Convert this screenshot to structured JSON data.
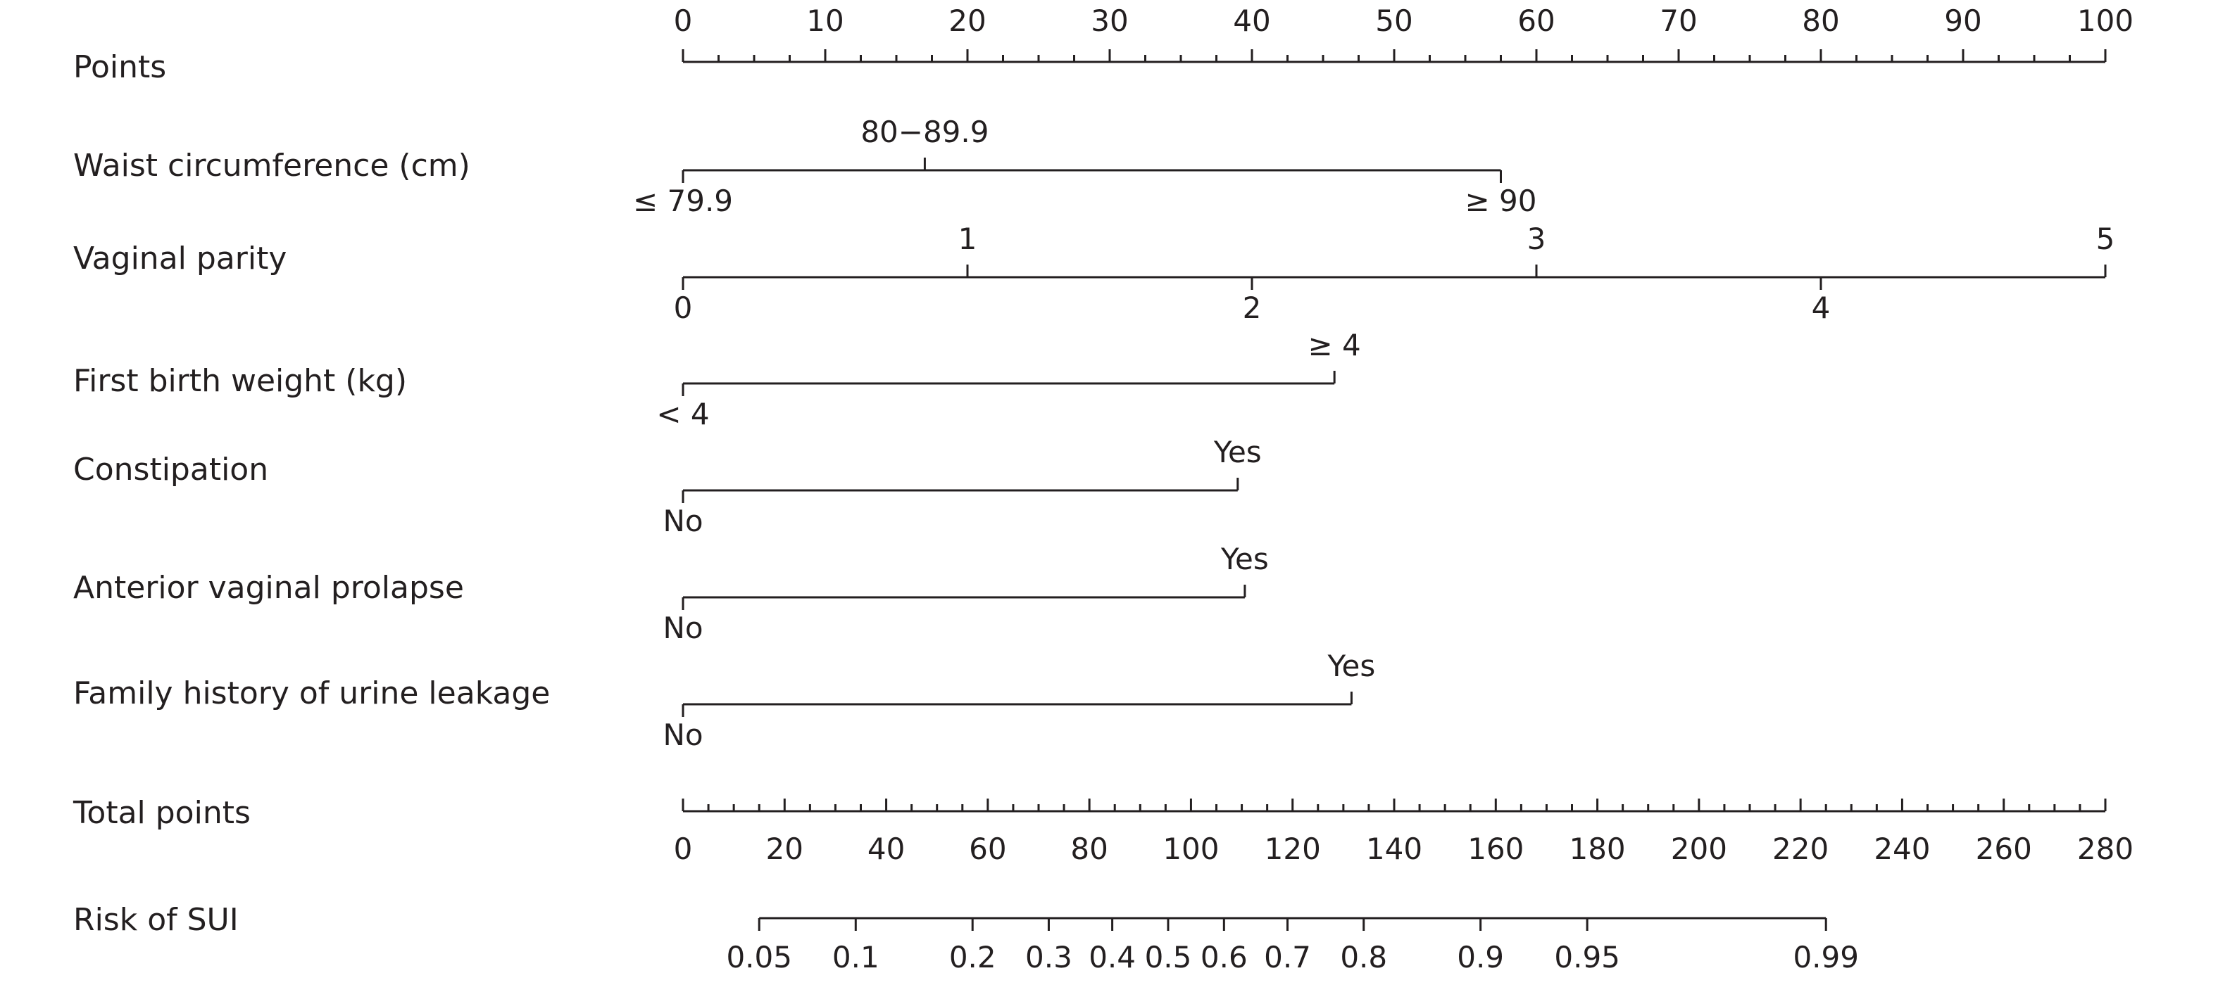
{
  "chart_data": {
    "type": "nomogram",
    "points_scale": {
      "min": 0,
      "max": 100
    },
    "rows": [
      {
        "label": "Points",
        "kind": "points",
        "major_ticks": [
          0,
          10,
          20,
          30,
          40,
          50,
          60,
          70,
          80,
          90,
          100
        ],
        "minor_step": 2.5,
        "tick_labels": [
          "0",
          "10",
          "20",
          "30",
          "40",
          "50",
          "60",
          "70",
          "80",
          "90",
          "100"
        ]
      },
      {
        "label": "Waist circumference (cm)",
        "kind": "variable",
        "levels": [
          {
            "label": "≤ 79.9",
            "points": 0,
            "label_side": "below"
          },
          {
            "label": "80−89.9",
            "points": 17,
            "label_side": "above"
          },
          {
            "label": "≥ 90",
            "points": 57.5,
            "label_side": "below"
          }
        ]
      },
      {
        "label": "Vaginal parity",
        "kind": "variable",
        "levels": [
          {
            "label": "0",
            "points": 0,
            "label_side": "below"
          },
          {
            "label": "1",
            "points": 20,
            "label_side": "above"
          },
          {
            "label": "2",
            "points": 40,
            "label_side": "below"
          },
          {
            "label": "3",
            "points": 60,
            "label_side": "above"
          },
          {
            "label": "4",
            "points": 80,
            "label_side": "below"
          },
          {
            "label": "5",
            "points": 100,
            "label_side": "above"
          }
        ]
      },
      {
        "label": "First birth weight (kg)",
        "kind": "variable",
        "levels": [
          {
            "label": "< 4",
            "points": 0,
            "label_side": "below"
          },
          {
            "label": "≥ 4",
            "points": 45.8,
            "label_side": "above"
          }
        ]
      },
      {
        "label": "Constipation",
        "kind": "variable",
        "levels": [
          {
            "label": "No",
            "points": 0,
            "label_side": "below"
          },
          {
            "label": "Yes",
            "points": 39,
            "label_side": "above"
          }
        ]
      },
      {
        "label": "Anterior vaginal prolapse",
        "kind": "variable",
        "levels": [
          {
            "label": "No",
            "points": 0,
            "label_side": "below"
          },
          {
            "label": "Yes",
            "points": 39.5,
            "label_side": "above"
          }
        ]
      },
      {
        "label": "Family history of urine leakage",
        "kind": "variable",
        "levels": [
          {
            "label": "No",
            "points": 0,
            "label_side": "below"
          },
          {
            "label": "Yes",
            "points": 47,
            "label_side": "above"
          }
        ]
      },
      {
        "label": "Total points",
        "kind": "total",
        "range": [
          0,
          280
        ],
        "major_ticks": [
          0,
          20,
          40,
          60,
          80,
          100,
          120,
          140,
          160,
          180,
          200,
          220,
          240,
          260,
          280
        ],
        "minor_step": 5,
        "tick_labels": [
          "0",
          "20",
          "40",
          "60",
          "80",
          "100",
          "120",
          "140",
          "160",
          "180",
          "200",
          "220",
          "240",
          "260",
          "280"
        ]
      },
      {
        "label": "Risk of SUI",
        "kind": "risk",
        "ticks": [
          {
            "label": "0.05",
            "total_points": 15
          },
          {
            "label": "0.1",
            "total_points": 34
          },
          {
            "label": "0.2",
            "total_points": 57
          },
          {
            "label": "0.3",
            "total_points": 72
          },
          {
            "label": "0.4",
            "total_points": 84.5
          },
          {
            "label": "0.5",
            "total_points": 95.5
          },
          {
            "label": "0.6",
            "total_points": 106.5
          },
          {
            "label": "0.7",
            "total_points": 119
          },
          {
            "label": "0.8",
            "total_points": 134
          },
          {
            "label": "0.9",
            "total_points": 157
          },
          {
            "label": "0.95",
            "total_points": 178
          },
          {
            "label": "0.99",
            "total_points": 225
          }
        ]
      }
    ]
  }
}
